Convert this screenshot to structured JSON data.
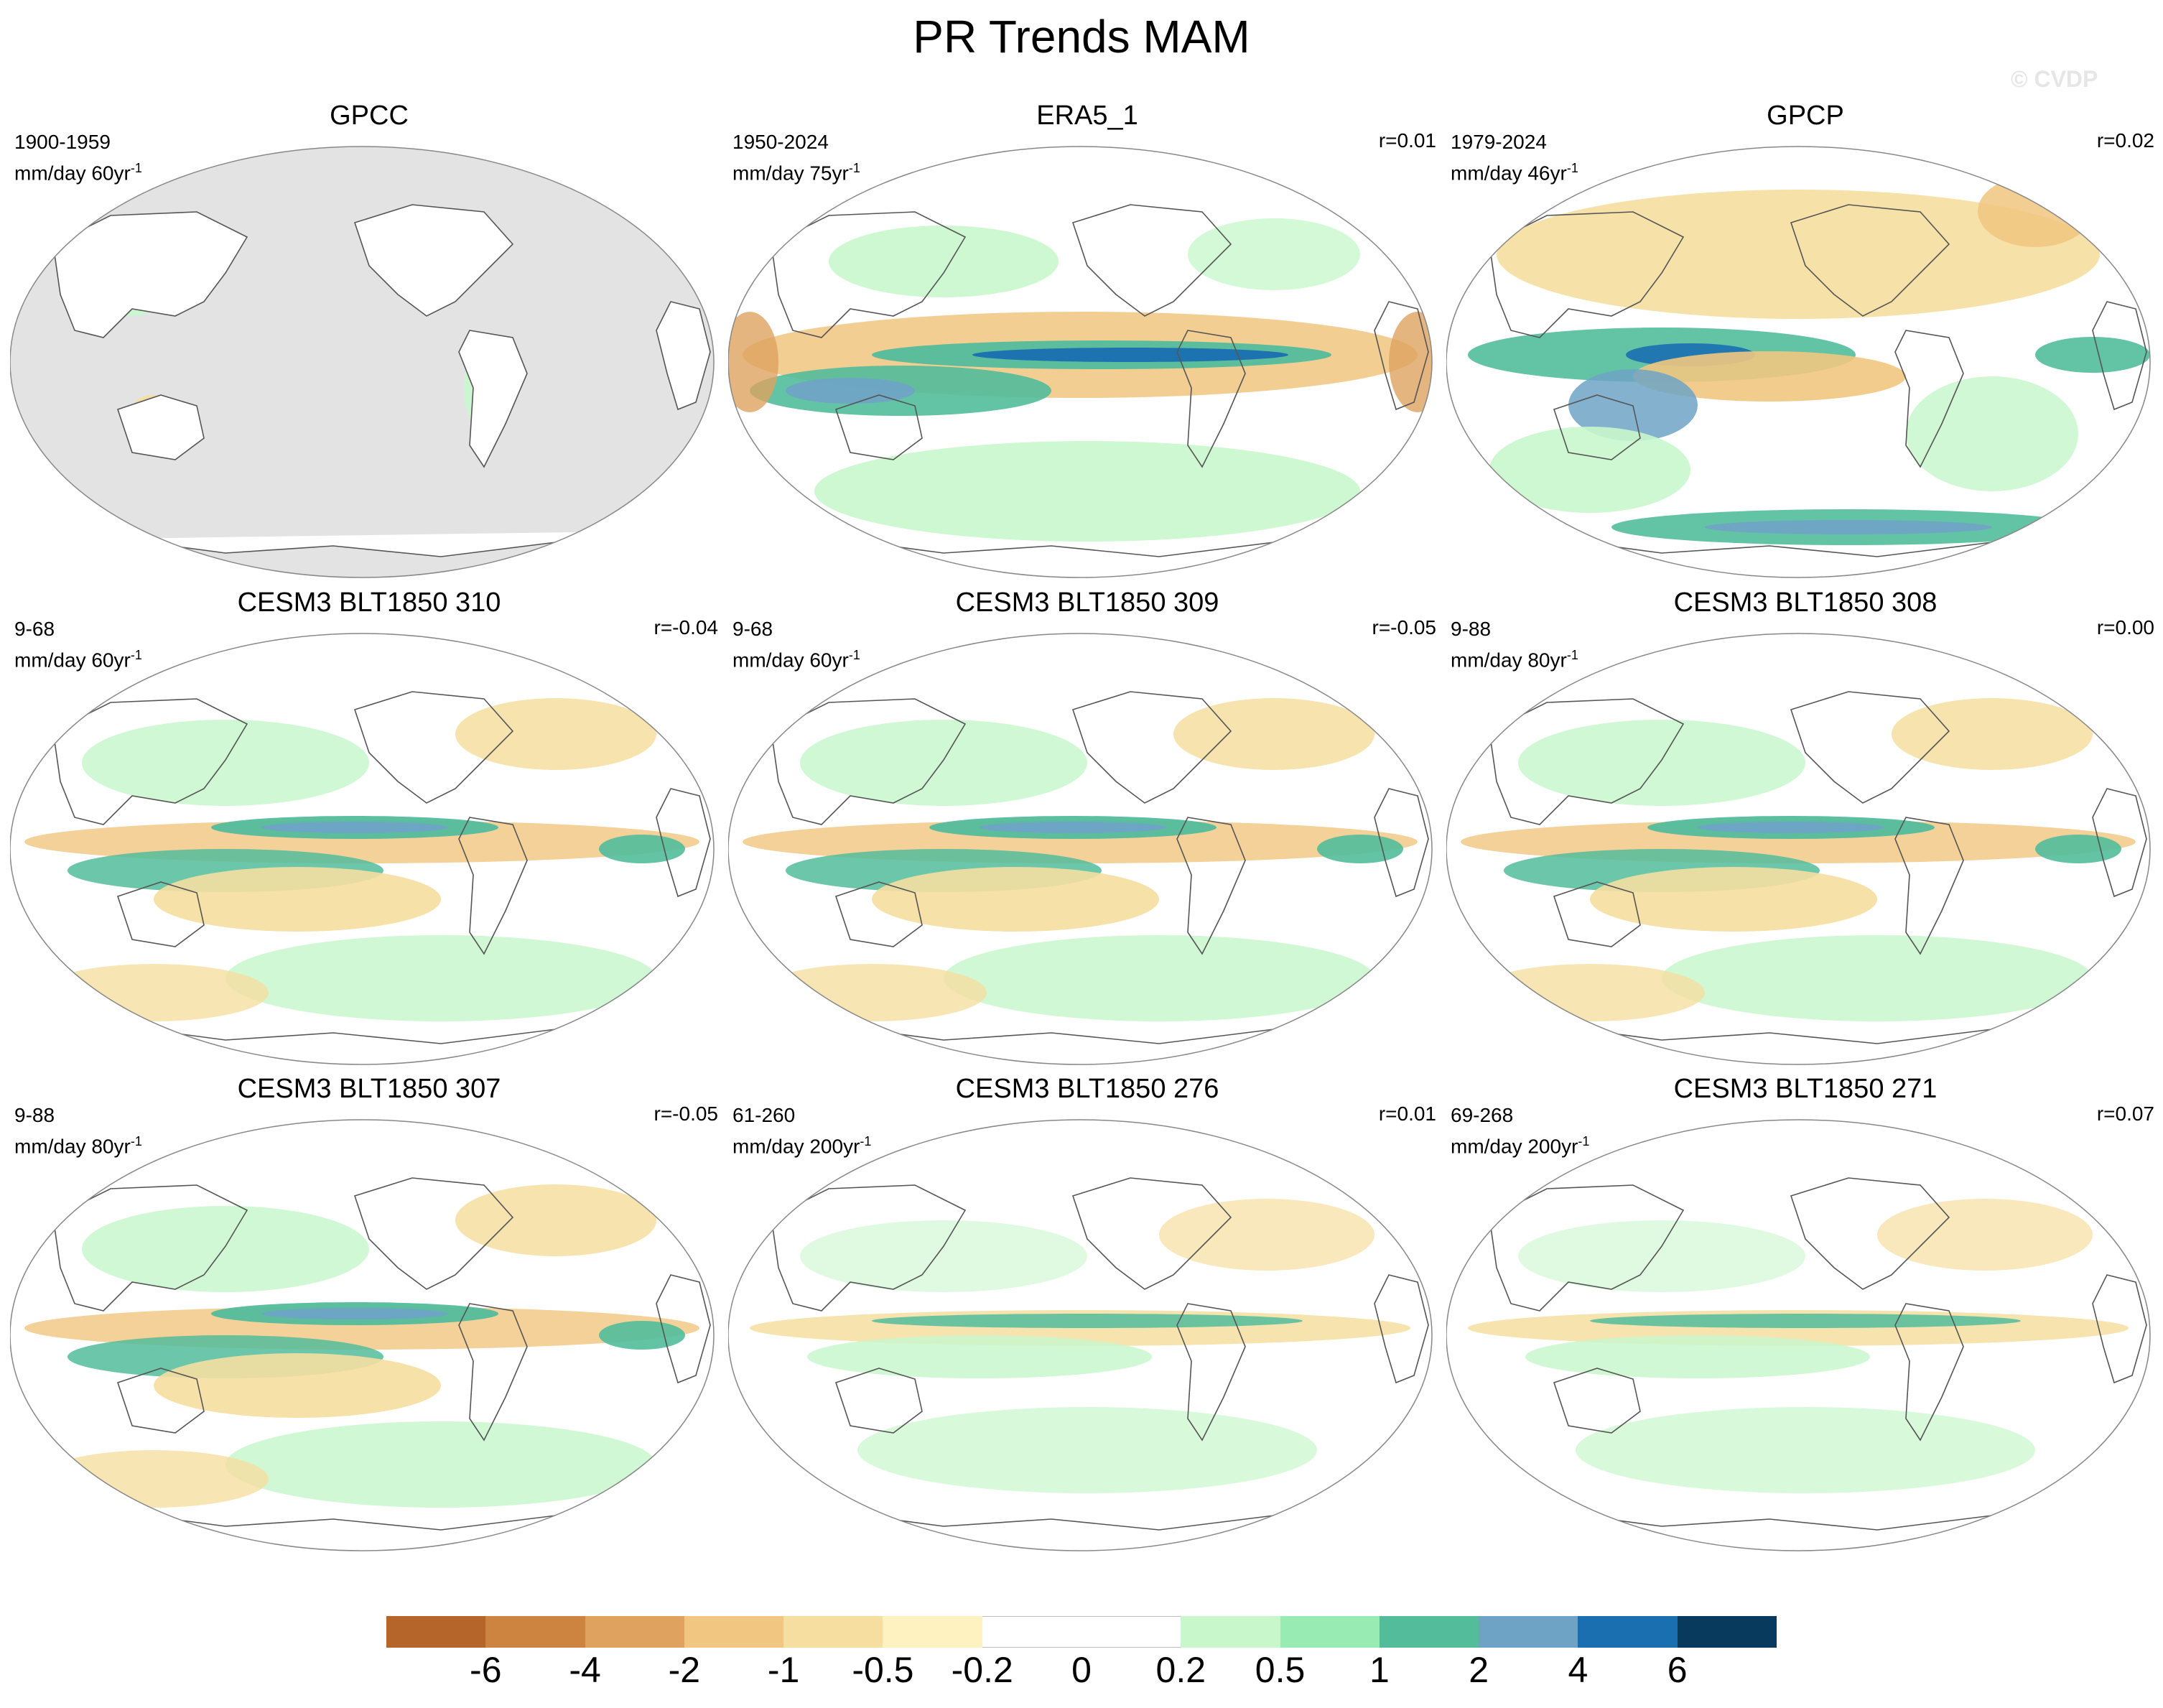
{
  "figure_title": "PR Trends MAM",
  "watermark": "© CVDP",
  "units_suffix": "yr",
  "units_exponent": "-1",
  "panels": [
    {
      "title": "GPCC",
      "years": "1900-1959",
      "units": "mm/day 60",
      "corr": "",
      "style": "land"
    },
    {
      "title": "ERA5_1",
      "years": "1950-2024",
      "units": "mm/day 75",
      "corr": "r=0.01",
      "style": "era5"
    },
    {
      "title": "GPCP",
      "years": "1979-2024",
      "units": "mm/day 46",
      "corr": "r=0.02",
      "style": "gpcp"
    },
    {
      "title": "CESM3 BLT1850 310",
      "years": "9-68",
      "units": "mm/day 60",
      "corr": "r=-0.04",
      "style": "model"
    },
    {
      "title": "CESM3 BLT1850 309",
      "years": "9-68",
      "units": "mm/day 60",
      "corr": "r=-0.05",
      "style": "model"
    },
    {
      "title": "CESM3 BLT1850 308",
      "years": "9-88",
      "units": "mm/day 80",
      "corr": "r=0.00",
      "style": "model"
    },
    {
      "title": "CESM3 BLT1850 307",
      "years": "9-88",
      "units": "mm/day 80",
      "corr": "r=-0.05",
      "style": "model"
    },
    {
      "title": "CESM3 BLT1850 276",
      "years": "61-260",
      "units": "mm/day 200",
      "corr": "r=0.01",
      "style": "weak"
    },
    {
      "title": "CESM3 BLT1850 271",
      "years": "69-268",
      "units": "mm/day 200",
      "corr": "r=0.07",
      "style": "weak"
    }
  ],
  "colorbar": {
    "labels": [
      "-6",
      "-4",
      "-2",
      "-1",
      "-0.5",
      "-0.2",
      "0",
      "0.2",
      "0.5",
      "1",
      "2",
      "4",
      "6"
    ],
    "colors": [
      "#b5642a",
      "#cc8440",
      "#dfa35f",
      "#f0c680",
      "#f5dea0",
      "#fdf2c0",
      "#ffffff",
      "#ffffff",
      "#c9f7cc",
      "#98ebb3",
      "#52bc9b",
      "#6fa3c6",
      "#1a6fb0",
      "#073a5c"
    ]
  },
  "map_colors": {
    "land_mask": "#e3e3e3",
    "dry": "#f0c680",
    "dry_light": "#f5dea0",
    "wet_light": "#c9f7cc",
    "wet": "#98ebb3",
    "wet_mid": "#52bc9b",
    "wet_strong": "#6fa3c6",
    "wet_deep": "#1a6fb0",
    "dry_strong": "#dfa35f",
    "coast": "#555555"
  }
}
